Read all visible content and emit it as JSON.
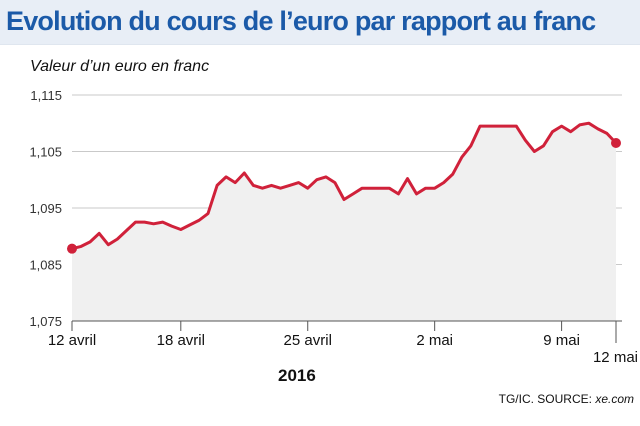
{
  "title": "Evolution du cours de l’euro par rapport au franc",
  "subtitle": "Valeur d’un euro en franc",
  "year": "2016",
  "source_prefix": "TG/IC. SOURCE: ",
  "source_name": "xe.com",
  "colors": {
    "title": "#1b5aa8",
    "line": "#d0213a",
    "area": "#f0f0f0",
    "header_bg": "#e8eef6"
  },
  "chart_data": {
    "type": "area",
    "title": "Evolution du cours de l’euro par rapport au franc",
    "ylabel": "Valeur d’un euro en franc",
    "ylim": [
      1.075,
      1.115
    ],
    "y_ticks": [
      "1,115",
      "1,105",
      "1,095",
      "1,085",
      "1,075"
    ],
    "y_tick_values": [
      1.115,
      1.105,
      1.095,
      1.085,
      1.075
    ],
    "x_ticks": [
      "12 avril",
      "18 avril",
      "25 avril",
      "2 mai",
      "9 mai",
      "12 mai"
    ],
    "x_tick_days": [
      0,
      6,
      13,
      20,
      27,
      30
    ],
    "x_unit": "days",
    "grid": true,
    "series": [
      {
        "x": [
          0,
          0.5,
          1,
          1.5,
          2,
          2.5,
          3,
          3.5,
          4,
          4.5,
          5,
          5.5,
          6,
          6.5,
          7,
          7.5,
          8,
          8.5,
          9,
          9.5,
          10,
          10.5,
          11,
          11.5,
          12,
          12.5,
          13,
          13.5,
          14,
          14.5,
          15,
          15.5,
          16,
          16.5,
          17,
          17.5,
          18,
          18.5,
          19,
          19.5,
          20,
          20.5,
          21,
          21.5,
          22,
          22.5,
          23,
          23.5,
          24,
          24.5,
          25,
          25.5,
          26,
          26.5,
          27,
          27.5,
          28,
          28.5,
          29,
          29.5,
          30
        ],
        "values": [
          1.0878,
          1.0882,
          1.089,
          1.0905,
          1.0885,
          1.0895,
          1.091,
          1.0925,
          1.0925,
          1.0922,
          1.0925,
          1.0918,
          1.0912,
          1.092,
          1.0928,
          1.094,
          1.099,
          1.1005,
          1.0995,
          1.1012,
          1.099,
          1.0985,
          1.099,
          1.0985,
          1.099,
          1.0995,
          1.0985,
          1.1,
          1.1005,
          1.0995,
          1.0965,
          1.0975,
          1.0985,
          1.0985,
          1.0985,
          1.0985,
          1.0975,
          1.1002,
          1.0975,
          1.0985,
          1.0985,
          1.0995,
          1.101,
          1.104,
          1.106,
          1.1095,
          1.1095,
          1.1095,
          1.1095,
          1.1095,
          1.107,
          1.105,
          1.106,
          1.1085,
          1.1095,
          1.1085,
          1.1097,
          1.11,
          1.109,
          1.1082,
          1.1065
        ]
      }
    ]
  }
}
